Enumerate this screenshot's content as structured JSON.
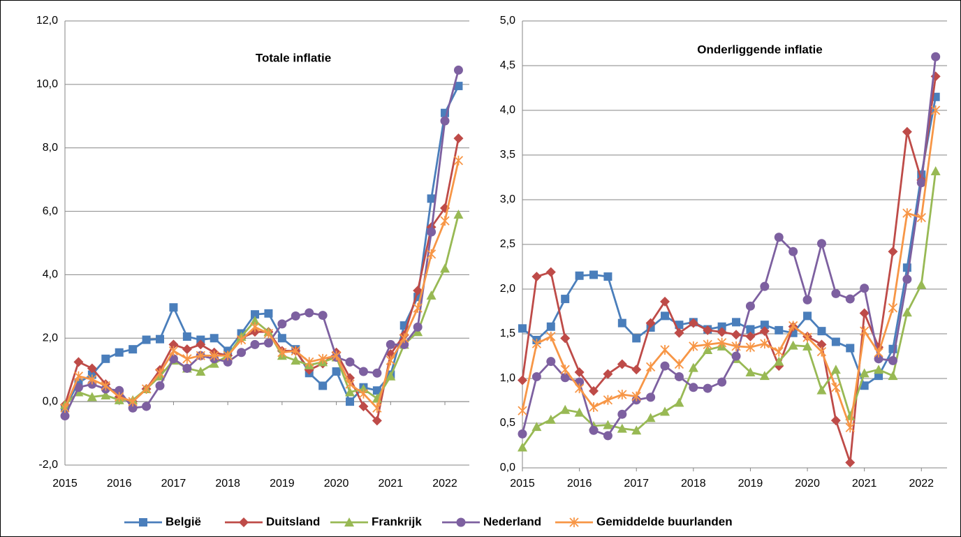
{
  "chart_data": [
    {
      "type": "line",
      "title": "Totale inflatie",
      "x": [
        2015,
        2015.25,
        2015.5,
        2015.75,
        2016,
        2016.25,
        2016.5,
        2016.75,
        2017,
        2017.25,
        2017.5,
        2017.75,
        2018,
        2018.25,
        2018.5,
        2018.75,
        2019,
        2019.25,
        2019.5,
        2019.75,
        2020,
        2020.25,
        2020.5,
        2020.75,
        2021,
        2021.25,
        2021.5,
        2021.75,
        2022,
        2022.25
      ],
      "xlim": [
        2015,
        2022.45
      ],
      "xticks": [
        2015,
        2016,
        2017,
        2018,
        2019,
        2020,
        2021,
        2022
      ],
      "ylim": [
        -2,
        12
      ],
      "yticks": [
        {
          "value": -2,
          "label": "-2,0"
        },
        {
          "value": 0,
          "label": "0,0"
        },
        {
          "value": 2,
          "label": "2,0"
        },
        {
          "value": 4,
          "label": "4,0"
        },
        {
          "value": 6,
          "label": "6,0"
        },
        {
          "value": 8,
          "label": "8,0"
        },
        {
          "value": 10,
          "label": "10,0"
        },
        {
          "value": 12,
          "label": "12,0"
        }
      ],
      "grid": true,
      "series": [
        {
          "name": "België",
          "color": "#4a7ebb",
          "marker": "square",
          "values": [
            -0.2,
            0.6,
            0.85,
            1.35,
            1.55,
            1.65,
            1.95,
            1.97,
            2.97,
            2.05,
            1.95,
            2.0,
            1.6,
            2.15,
            2.75,
            2.78,
            2.0,
            1.65,
            0.9,
            0.5,
            0.95,
            0.0,
            0.45,
            0.35,
            0.85,
            2.4,
            3.3,
            6.4,
            9.1,
            9.95
          ]
        },
        {
          "name": "Duitsland",
          "color": "#be4b48",
          "marker": "diamond",
          "values": [
            -0.1,
            1.25,
            1.05,
            0.55,
            0.15,
            0.0,
            0.4,
            1.0,
            1.8,
            1.65,
            1.8,
            1.55,
            1.45,
            2.0,
            2.2,
            2.2,
            1.6,
            1.6,
            1.0,
            1.2,
            1.55,
            0.75,
            -0.15,
            -0.6,
            1.5,
            2.1,
            3.5,
            5.5,
            6.1,
            8.3
          ]
        },
        {
          "name": "Frankrijk",
          "color": "#98b954",
          "marker": "triangle",
          "values": [
            -0.1,
            0.3,
            0.15,
            0.2,
            0.05,
            0.05,
            0.4,
            0.8,
            1.3,
            1.05,
            0.95,
            1.2,
            1.45,
            2.05,
            2.55,
            2.2,
            1.45,
            1.3,
            1.15,
            1.25,
            1.4,
            0.3,
            0.4,
            0.1,
            0.8,
            1.8,
            2.2,
            3.35,
            4.2,
            5.9
          ]
        },
        {
          "name": "Nederland",
          "color": "#7d60a0",
          "marker": "circle",
          "values": [
            -0.45,
            0.45,
            0.55,
            0.4,
            0.35,
            -0.2,
            -0.15,
            0.5,
            1.35,
            1.05,
            1.45,
            1.35,
            1.25,
            1.55,
            1.8,
            1.85,
            2.45,
            2.7,
            2.8,
            2.72,
            1.4,
            1.25,
            0.95,
            0.9,
            1.8,
            1.8,
            2.35,
            5.35,
            8.85,
            10.45
          ]
        },
        {
          "name": "Gemiddelde buurlanden",
          "color": "#f79646",
          "marker": "star",
          "values": [
            -0.2,
            0.8,
            0.7,
            0.5,
            0.15,
            0.0,
            0.4,
            0.9,
            1.6,
            1.35,
            1.45,
            1.45,
            1.45,
            1.95,
            2.35,
            2.15,
            1.55,
            1.6,
            1.25,
            1.35,
            1.45,
            0.55,
            0.25,
            -0.2,
            1.3,
            2.0,
            2.95,
            4.65,
            5.7,
            7.6
          ]
        }
      ]
    },
    {
      "type": "line",
      "title": "Onderliggende inflatie",
      "x": [
        2015,
        2015.25,
        2015.5,
        2015.75,
        2016,
        2016.25,
        2016.5,
        2016.75,
        2017,
        2017.25,
        2017.5,
        2017.75,
        2018,
        2018.25,
        2018.5,
        2018.75,
        2019,
        2019.25,
        2019.5,
        2019.75,
        2020,
        2020.25,
        2020.5,
        2020.75,
        2021,
        2021.25,
        2021.5,
        2021.75,
        2022,
        2022.25
      ],
      "xlim": [
        2015,
        2022.45
      ],
      "xticks": [
        2015,
        2016,
        2017,
        2018,
        2019,
        2020,
        2021,
        2022
      ],
      "ylim": [
        0,
        5
      ],
      "yticks": [
        {
          "value": 0,
          "label": "0,0"
        },
        {
          "value": 0.5,
          "label": "0,5"
        },
        {
          "value": 1,
          "label": "1,0"
        },
        {
          "value": 1.5,
          "label": "1,5"
        },
        {
          "value": 2,
          "label": "2,0"
        },
        {
          "value": 2.5,
          "label": "2,5"
        },
        {
          "value": 3,
          "label": "3,0"
        },
        {
          "value": 3.5,
          "label": "3,5"
        },
        {
          "value": 4,
          "label": "4,0"
        },
        {
          "value": 4.5,
          "label": "4,5"
        },
        {
          "value": 5,
          "label": "5,0"
        }
      ],
      "grid": true,
      "series": [
        {
          "color": "#4a7ebb",
          "marker": "square",
          "values": [
            1.56,
            1.43,
            1.58,
            1.89,
            2.15,
            2.16,
            2.14,
            1.62,
            1.45,
            1.57,
            1.7,
            1.6,
            1.63,
            1.55,
            1.58,
            1.63,
            1.55,
            1.6,
            1.54,
            1.51,
            1.7,
            1.53,
            1.41,
            1.34,
            0.92,
            1.03,
            1.33,
            2.24,
            3.28,
            4.15
          ]
        },
        {
          "color": "#be4b48",
          "marker": "diamond",
          "values": [
            0.98,
            2.14,
            2.19,
            1.45,
            1.07,
            0.86,
            1.05,
            1.16,
            1.1,
            1.62,
            1.86,
            1.51,
            1.62,
            1.54,
            1.52,
            1.49,
            1.47,
            1.53,
            1.14,
            1.58,
            1.47,
            1.38,
            0.53,
            0.06,
            1.73,
            1.35,
            2.42,
            3.76,
            3.22,
            4.38
          ]
        },
        {
          "color": "#98b954",
          "marker": "triangle",
          "values": [
            0.23,
            0.46,
            0.54,
            0.65,
            0.62,
            0.47,
            0.48,
            0.44,
            0.42,
            0.56,
            0.63,
            0.73,
            1.12,
            1.32,
            1.36,
            1.22,
            1.07,
            1.03,
            1.19,
            1.37,
            1.36,
            0.87,
            1.1,
            0.58,
            1.06,
            1.1,
            1.03,
            1.74,
            2.05,
            3.32
          ]
        },
        {
          "color": "#7d60a0",
          "marker": "circle",
          "values": [
            0.38,
            1.02,
            1.19,
            1.01,
            0.96,
            0.42,
            0.36,
            0.6,
            0.76,
            0.79,
            1.14,
            1.02,
            0.9,
            0.89,
            0.96,
            1.25,
            1.81,
            2.03,
            2.58,
            2.42,
            1.88,
            2.51,
            1.95,
            1.89,
            2.01,
            1.22,
            1.2,
            2.11,
            3.19,
            4.6
          ]
        },
        {
          "color": "#f79646",
          "marker": "star",
          "values": [
            0.64,
            1.39,
            1.47,
            1.1,
            0.89,
            0.68,
            0.76,
            0.82,
            0.8,
            1.13,
            1.32,
            1.16,
            1.36,
            1.38,
            1.4,
            1.36,
            1.35,
            1.39,
            1.3,
            1.59,
            1.46,
            1.3,
            0.9,
            0.45,
            1.53,
            1.29,
            1.79,
            2.85,
            2.8,
            4.0
          ]
        }
      ]
    }
  ]
}
